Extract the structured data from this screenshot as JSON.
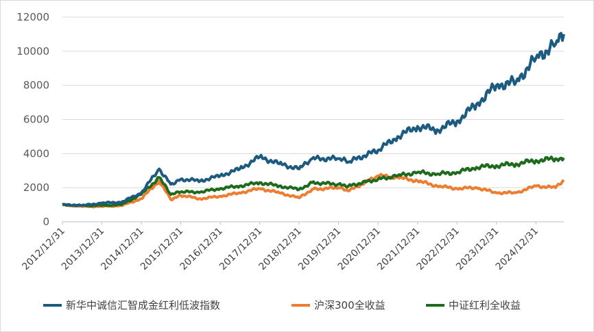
{
  "chart_data": {
    "type": "line",
    "ylim": [
      0,
      12000
    ],
    "yticks": [
      0,
      2000,
      4000,
      6000,
      8000,
      10000,
      12000
    ],
    "xticks": [
      "2012/12/31",
      "2013/12/31",
      "2014/12/31",
      "2015/12/31",
      "2016/12/31",
      "2017/12/31",
      "2018/12/31",
      "2019/12/31",
      "2020/12/31",
      "2021/12/31",
      "2022/12/31",
      "2023/12/31",
      "2024/12/31"
    ],
    "grid": true,
    "legend_position": "bottom",
    "x": [
      "2012/12/31",
      "2013/06/30",
      "2013/12/31",
      "2014/06/30",
      "2014/12/31",
      "2015/06/15",
      "2015/09/30",
      "2015/12/31",
      "2016/06/30",
      "2016/12/31",
      "2017/06/30",
      "2017/12/31",
      "2018/06/30",
      "2018/12/31",
      "2019/04/30",
      "2019/12/31",
      "2020/03/31",
      "2020/12/31",
      "2021/06/30",
      "2021/12/31",
      "2022/06/30",
      "2022/12/31",
      "2023/06/30",
      "2023/12/31",
      "2024/06/30",
      "2024/12/31",
      "2025/06/30",
      "2025/09/15"
    ],
    "series": [
      {
        "name": "新华中诚信汇智成金红利低波指数",
        "color": "#1c5a80",
        "values": [
          1000,
          950,
          1100,
          1150,
          1700,
          3100,
          2200,
          2500,
          2400,
          2700,
          3100,
          3800,
          3400,
          3100,
          3700,
          3700,
          3500,
          4200,
          5000,
          5600,
          5400,
          5900,
          6900,
          8000,
          8200,
          9600,
          10400,
          11000
        ]
      },
      {
        "name": "沪深300全收益",
        "color": "#ed7d31",
        "values": [
          1000,
          900,
          900,
          950,
          1350,
          2400,
          1300,
          1550,
          1350,
          1500,
          1700,
          1950,
          1700,
          1400,
          1900,
          2000,
          1800,
          2700,
          2600,
          2400,
          2100,
          1950,
          2000,
          1700,
          1700,
          2100,
          2000,
          2450
        ]
      },
      {
        "name": "中证红利全收益",
        "color": "#1e6b1e",
        "values": [
          1000,
          950,
          950,
          1000,
          1600,
          2600,
          1600,
          1750,
          1750,
          1950,
          2100,
          2300,
          2100,
          1900,
          2300,
          2200,
          2100,
          2500,
          2700,
          2900,
          2800,
          2900,
          3200,
          3300,
          3400,
          3600,
          3700,
          3750
        ]
      }
    ]
  }
}
